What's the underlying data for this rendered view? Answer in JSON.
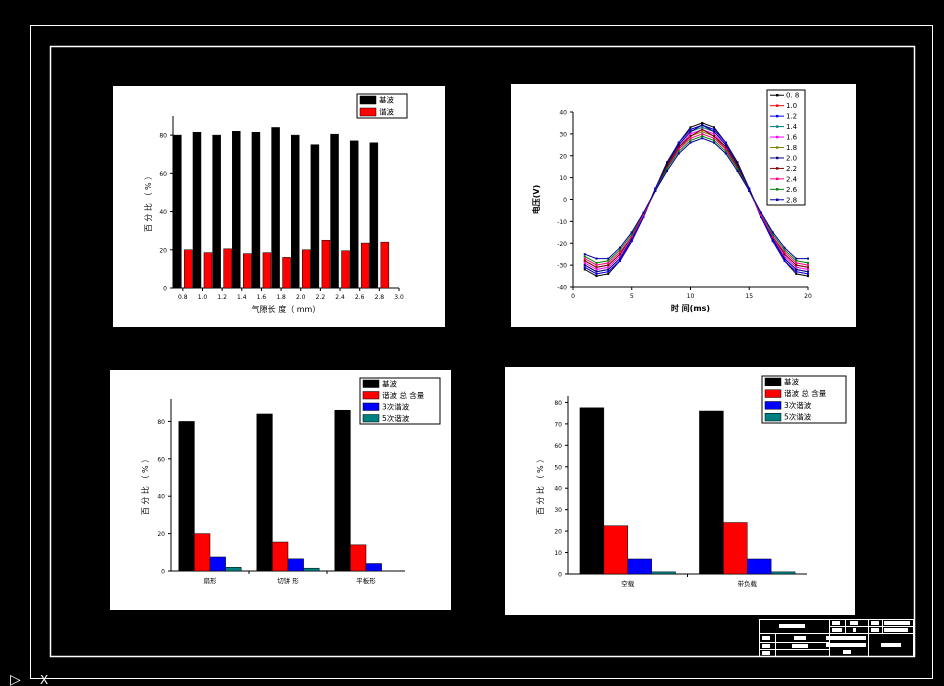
{
  "drawing": {
    "background": "#000000",
    "frame_color": "#ffffff",
    "corner_marks": [
      "▷",
      "X"
    ]
  },
  "chart_data": [
    {
      "type": "bar",
      "categories": [
        "0.8",
        "1.0",
        "1.2",
        "1.4",
        "1.6",
        "1.8",
        "2.0",
        "2.2",
        "2.4",
        "2.6",
        "2.8"
      ],
      "x_ticks": [
        "0.8",
        "1.0",
        "1.2",
        "1.4",
        "1.6",
        "1.8",
        "2.0",
        "2.2",
        "2.4",
        "2.6",
        "2.8",
        "3.0"
      ],
      "series": [
        {
          "name": "基波",
          "color": "#000000",
          "values": [
            80,
            81.5,
            80,
            82,
            81.5,
            84,
            80,
            75,
            80.5,
            77,
            76
          ]
        },
        {
          "name": "谐波",
          "color": "#ff0000",
          "values": [
            20,
            18.5,
            20.5,
            18,
            18.5,
            16,
            20,
            25,
            19.5,
            23.5,
            24
          ]
        }
      ],
      "xlabel": "气隙长 度（ mm）",
      "ylabel": "百 分 比 （ % ）",
      "ylim": [
        0,
        90
      ],
      "y_ticks": [
        0,
        20,
        40,
        60,
        80
      ],
      "grid": false,
      "legend": "top-right"
    },
    {
      "type": "line",
      "x": [
        1,
        2,
        3,
        4,
        5,
        6,
        7,
        8,
        9,
        10,
        11,
        12,
        13,
        14,
        15,
        16,
        17,
        18,
        19,
        20
      ],
      "series": [
        {
          "name": "0. 8",
          "color": "#000000",
          "values": [
            -32,
            -35,
            -34,
            -28,
            -19,
            -8,
            5,
            17,
            26,
            33,
            35,
            33,
            26,
            17,
            5,
            -8,
            -19,
            -28,
            -34,
            -35
          ]
        },
        {
          "name": "1.0",
          "color": "#ff0000",
          "values": [
            -31,
            -34,
            -33,
            -28,
            -19,
            -8,
            5,
            16,
            26,
            32,
            34,
            32,
            26,
            16,
            5,
            -8,
            -19,
            -28,
            -33,
            -34
          ]
        },
        {
          "name": "1.2",
          "color": "#0000ff",
          "values": [
            -31,
            -34,
            -33,
            -28,
            -19,
            -8,
            5,
            16,
            26,
            32,
            34,
            32,
            26,
            16,
            5,
            -8,
            -19,
            -28,
            -33,
            -34
          ]
        },
        {
          "name": "1.4",
          "color": "#008080",
          "values": [
            -30,
            -33,
            -32,
            -27,
            -18,
            -7,
            4,
            16,
            25,
            31,
            33,
            31,
            25,
            16,
            4,
            -7,
            -18,
            -27,
            -32,
            -33
          ]
        },
        {
          "name": "1.6",
          "color": "#ff00ff",
          "values": [
            -29,
            -32,
            -31,
            -26,
            -18,
            -7,
            4,
            15,
            24,
            30,
            32,
            30,
            24,
            15,
            4,
            -7,
            -18,
            -26,
            -31,
            -32
          ]
        },
        {
          "name": "1.8",
          "color": "#808000",
          "values": [
            -28,
            -31,
            -30,
            -25,
            -17,
            -7,
            4,
            15,
            23,
            29,
            31,
            29,
            23,
            15,
            4,
            -7,
            -17,
            -25,
            -30,
            -31
          ]
        },
        {
          "name": "2.0",
          "color": "#000080",
          "values": [
            -30,
            -33,
            -32,
            -27,
            -18,
            -7,
            4,
            16,
            25,
            31,
            34,
            31,
            25,
            16,
            4,
            -7,
            -18,
            -27,
            -32,
            -33
          ]
        },
        {
          "name": "2.2",
          "color": "#800000",
          "values": [
            -28,
            -31,
            -30,
            -25,
            -17,
            -7,
            4,
            15,
            24,
            29,
            32,
            29,
            24,
            15,
            4,
            -7,
            -17,
            -25,
            -30,
            -31
          ]
        },
        {
          "name": "2.4",
          "color": "#ff0080",
          "values": [
            -27,
            -30,
            -29,
            -24,
            -17,
            -7,
            4,
            14,
            23,
            28,
            30,
            28,
            23,
            14,
            4,
            -7,
            -17,
            -24,
            -29,
            -30
          ]
        },
        {
          "name": "2.6",
          "color": "#008000",
          "values": [
            -26,
            -29,
            -28,
            -23,
            -16,
            -6,
            4,
            14,
            22,
            27,
            29,
            27,
            22,
            14,
            4,
            -6,
            -16,
            -23,
            -28,
            -29
          ]
        },
        {
          "name": "2.8",
          "color": "#0000a0",
          "values": [
            -25,
            -27,
            -27,
            -22,
            -15,
            -6,
            4,
            13,
            21,
            26,
            28,
            26,
            21,
            13,
            4,
            -6,
            -15,
            -22,
            -27,
            -27
          ]
        }
      ],
      "xlabel": "时 间(ms)",
      "ylabel": "电压(V)",
      "xlim": [
        0,
        20
      ],
      "ylim": [
        -40,
        40
      ],
      "x_ticks": [
        0,
        5,
        10,
        15,
        20
      ],
      "y_ticks": [
        -40,
        -30,
        -20,
        -10,
        0,
        10,
        20,
        30,
        40
      ],
      "grid": false,
      "legend": "top-right"
    },
    {
      "type": "bar",
      "categories": [
        "扇形",
        "切饼 形",
        "平板形"
      ],
      "series": [
        {
          "name": "基波",
          "color": "#000000",
          "values": [
            80,
            84,
            86
          ]
        },
        {
          "name": "谐波 总 含量",
          "color": "#ff0000",
          "values": [
            20,
            15.5,
            14
          ]
        },
        {
          "name": "3次谐波",
          "color": "#0000ff",
          "values": [
            7.5,
            6.5,
            4
          ]
        },
        {
          "name": "5次谐波",
          "color": "#008080",
          "values": [
            2,
            1.5,
            0
          ]
        }
      ],
      "xlabel": "",
      "ylabel": "百 分 比 （ % ）",
      "ylim": [
        0,
        92
      ],
      "y_ticks": [
        0,
        20,
        40,
        60,
        80
      ],
      "grid": false,
      "legend": "top-right"
    },
    {
      "type": "bar",
      "categories": [
        "空载",
        "带负载"
      ],
      "series": [
        {
          "name": "基波",
          "color": "#000000",
          "values": [
            77.5,
            76
          ]
        },
        {
          "name": "谐波 总 含量",
          "color": "#ff0000",
          "values": [
            22.5,
            24
          ]
        },
        {
          "name": "3次谐波",
          "color": "#0000ff",
          "values": [
            7,
            7
          ]
        },
        {
          "name": "5次谐波",
          "color": "#008080",
          "values": [
            1,
            1
          ]
        }
      ],
      "xlabel": "",
      "ylabel": "百 分 比 （ % ）",
      "ylim": [
        0,
        83
      ],
      "y_ticks": [
        0,
        10,
        20,
        30,
        40,
        50,
        60,
        70,
        80
      ],
      "grid": false,
      "legend": "top-right"
    }
  ]
}
